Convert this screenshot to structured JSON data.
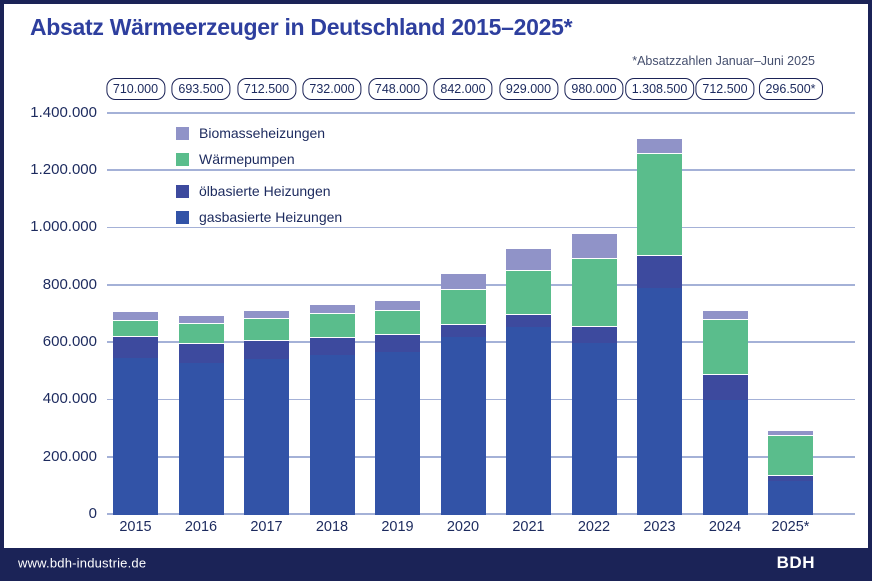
{
  "header": {
    "title": "Absatz Wärmeerzeuger in Deutschland 2015–2025*",
    "subtitle": "*Absatzzahlen Januar–Juni 2025"
  },
  "chart_data": {
    "type": "bar",
    "stacked": true,
    "title": "Absatz Wärmeerzeuger in Deutschland 2015–2025*",
    "note": "*Absatzzahlen Januar–Juni 2025",
    "categories": [
      "2015",
      "2016",
      "2017",
      "2018",
      "2019",
      "2020",
      "2021",
      "2022",
      "2023",
      "2024",
      "2025*"
    ],
    "total_labels": [
      "710.000",
      "693.500",
      "712.500",
      "732.000",
      "748.000",
      "842.000",
      "929.000",
      "980.000",
      "1.308.500",
      "712.500",
      "296.500*"
    ],
    "totals": [
      710000,
      693500,
      712500,
      732000,
      748000,
      842000,
      929000,
      980000,
      1308500,
      712500,
      296500
    ],
    "series": [
      {
        "name": "gasbasierte Heizungen",
        "color": "#3253a7",
        "values": [
          544500,
          527000,
          540500,
          556000,
          567000,
          617500,
          653500,
          598000,
          790000,
          399500,
          117500
        ]
      },
      {
        "name": "ölbasierte Heizungen",
        "color": "#3d4a9e",
        "values": [
          76500,
          72000,
          67500,
          61500,
          61000,
          46000,
          45000,
          59500,
          112500,
          90000,
          21500
        ]
      },
      {
        "name": "Wärmepumpen",
        "color": "#5abd8c",
        "values": [
          57000,
          66500,
          78000,
          84000,
          86000,
          120000,
          154000,
          236000,
          356500,
          193000,
          139500
        ]
      },
      {
        "name": "Biomasseheizungen",
        "color": "#9093c8",
        "values": [
          32000,
          28000,
          26500,
          30500,
          34000,
          58500,
          76500,
          86500,
          49500,
          30000,
          18000
        ]
      }
    ],
    "legend": [
      {
        "label": "Biomasseheizungen"
      },
      {
        "label": "Wärmepumpen"
      },
      {
        "label": "ölbasierte Heizungen"
      },
      {
        "label": "gasbasierte Heizungen"
      }
    ],
    "legend_position": "upper-left",
    "grid": true,
    "ylim": [
      0,
      1400000
    ],
    "ytick_labels": [
      "1.400.000",
      "1.200.000",
      "1.000.000",
      "800.000",
      "600.000",
      "400.000",
      "200.000",
      "0"
    ],
    "xlabel": "",
    "ylabel": ""
  },
  "footer": {
    "website": "www.bdh-industrie.de",
    "logo": "BDH"
  },
  "colors": {
    "navy": "#1b2357",
    "title_blue": "#2e3f9e",
    "text_navy": "#1c2a5e",
    "gridline": "#a4b1d7",
    "gas": "#3253a7",
    "oil": "#3d4a9e",
    "heatpump": "#5abd8c",
    "biomass": "#9093c8"
  }
}
